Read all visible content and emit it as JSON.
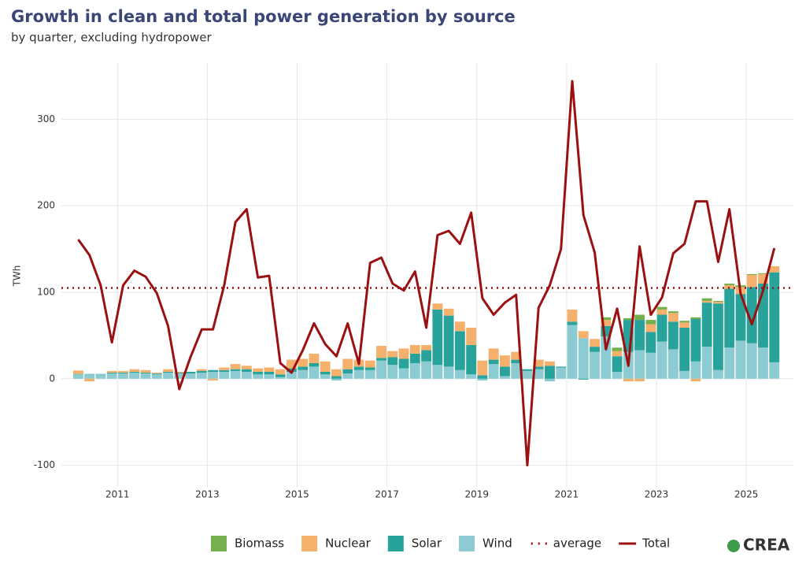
{
  "chart_data": {
    "type": "bar",
    "stacked": true,
    "title": "Growth in clean and total power generation by source",
    "subtitle": "by quarter, excluding hydropower",
    "y_label": "TWh",
    "logo": "CREA",
    "xlim": [
      2009.75,
      2026.05
    ],
    "xticks": [
      2011,
      2013,
      2015,
      2017,
      2019,
      2021,
      2023,
      2025
    ],
    "ylim": [
      -125,
      365
    ],
    "yticks": [
      -100,
      0,
      100,
      200,
      300
    ],
    "grid": true,
    "legend": "bottom",
    "x": [
      2010.125,
      2010.375,
      2010.625,
      2010.875,
      2011.125,
      2011.375,
      2011.625,
      2011.875,
      2012.125,
      2012.375,
      2012.625,
      2012.875,
      2013.125,
      2013.375,
      2013.625,
      2013.875,
      2014.125,
      2014.375,
      2014.625,
      2014.875,
      2015.125,
      2015.375,
      2015.625,
      2015.875,
      2016.125,
      2016.375,
      2016.625,
      2016.875,
      2017.125,
      2017.375,
      2017.625,
      2017.875,
      2018.125,
      2018.375,
      2018.625,
      2018.875,
      2019.125,
      2019.375,
      2019.625,
      2019.875,
      2020.125,
      2020.375,
      2020.625,
      2020.875,
      2021.125,
      2021.375,
      2021.625,
      2021.875,
      2022.125,
      2022.375,
      2022.625,
      2022.875,
      2023.125,
      2023.375,
      2023.625,
      2023.875,
      2024.125,
      2024.375,
      2024.625,
      2024.875,
      2025.125,
      2025.375,
      2025.625
    ],
    "series": [
      {
        "name": "Biomass",
        "type": "bar",
        "color": "#74b04e",
        "values": [
          0,
          0,
          0,
          0,
          0,
          0,
          0,
          0,
          0,
          0,
          0,
          0,
          0,
          0,
          0,
          0,
          0,
          0,
          0,
          0,
          0,
          0,
          0,
          0,
          0,
          0,
          0,
          0,
          0,
          0,
          0,
          0,
          0,
          0,
          0,
          0,
          0,
          0,
          0,
          0,
          0,
          0,
          0,
          0,
          0,
          0,
          0,
          3,
          4,
          2,
          6,
          5,
          3,
          2,
          2,
          2,
          3,
          1,
          2,
          2,
          1,
          1,
          0
        ]
      },
      {
        "name": "Nuclear",
        "type": "bar",
        "color": "#f5b06c",
        "values": [
          4,
          -3,
          0,
          2,
          2,
          3,
          3,
          1,
          3,
          1,
          0,
          2,
          -2,
          3,
          6,
          4,
          4,
          5,
          6,
          10,
          9,
          11,
          12,
          8,
          12,
          8,
          8,
          14,
          7,
          12,
          10,
          6,
          7,
          8,
          11,
          20,
          17,
          13,
          13,
          9,
          0,
          8,
          5,
          0,
          14,
          8,
          9,
          7,
          6,
          -3,
          -3,
          9,
          6,
          10,
          6,
          -3,
          2,
          2,
          4,
          8,
          14,
          11,
          7
        ]
      },
      {
        "name": "Solar",
        "type": "bar",
        "color": "#27a39b",
        "values": [
          0.5,
          0.5,
          0.5,
          1,
          1,
          1,
          1,
          1,
          1,
          1,
          2,
          2,
          2,
          2,
          2,
          3,
          3,
          3,
          3,
          4,
          4,
          4,
          3,
          3,
          5,
          4,
          3,
          3,
          9,
          11,
          11,
          13,
          64,
          59,
          45,
          34,
          4,
          5,
          11,
          4,
          2,
          3,
          15,
          1,
          4,
          -1,
          6,
          12,
          18,
          37,
          35,
          24,
          31,
          32,
          50,
          49,
          51,
          77,
          68,
          54,
          65,
          74,
          104
        ]
      },
      {
        "name": "Wind",
        "type": "bar",
        "color": "#8ccbd1",
        "values": [
          5,
          5,
          5,
          6,
          6,
          7,
          6,
          5,
          7,
          6,
          6,
          7,
          8,
          8,
          9,
          8,
          5,
          5,
          2,
          8,
          10,
          14,
          5,
          -2,
          6,
          10,
          10,
          21,
          16,
          12,
          18,
          20,
          16,
          14,
          10,
          5,
          -2,
          17,
          3,
          18,
          9,
          11,
          -3,
          13,
          62,
          47,
          31,
          49,
          8,
          31,
          33,
          30,
          43,
          34,
          9,
          20,
          37,
          10,
          36,
          44,
          41,
          36,
          19
        ]
      },
      {
        "name": "Total",
        "type": "line",
        "color": "#9b1010",
        "values": [
          161,
          143,
          108,
          42,
          108,
          125,
          118,
          99,
          61,
          -12,
          25,
          57,
          57,
          108,
          181,
          196,
          117,
          119,
          18,
          7,
          33,
          64,
          40,
          26,
          64,
          17,
          134,
          140,
          110,
          102,
          124,
          59,
          166,
          171,
          156,
          192,
          93,
          74,
          88,
          97,
          -100,
          82,
          108,
          150,
          344,
          189,
          146,
          34,
          81,
          15,
          153,
          74,
          94,
          145,
          156,
          205,
          205,
          135,
          196,
          98,
          63,
          102,
          151
        ]
      }
    ],
    "average": {
      "name": "average",
      "value": 105,
      "color": "#9b1010"
    }
  }
}
